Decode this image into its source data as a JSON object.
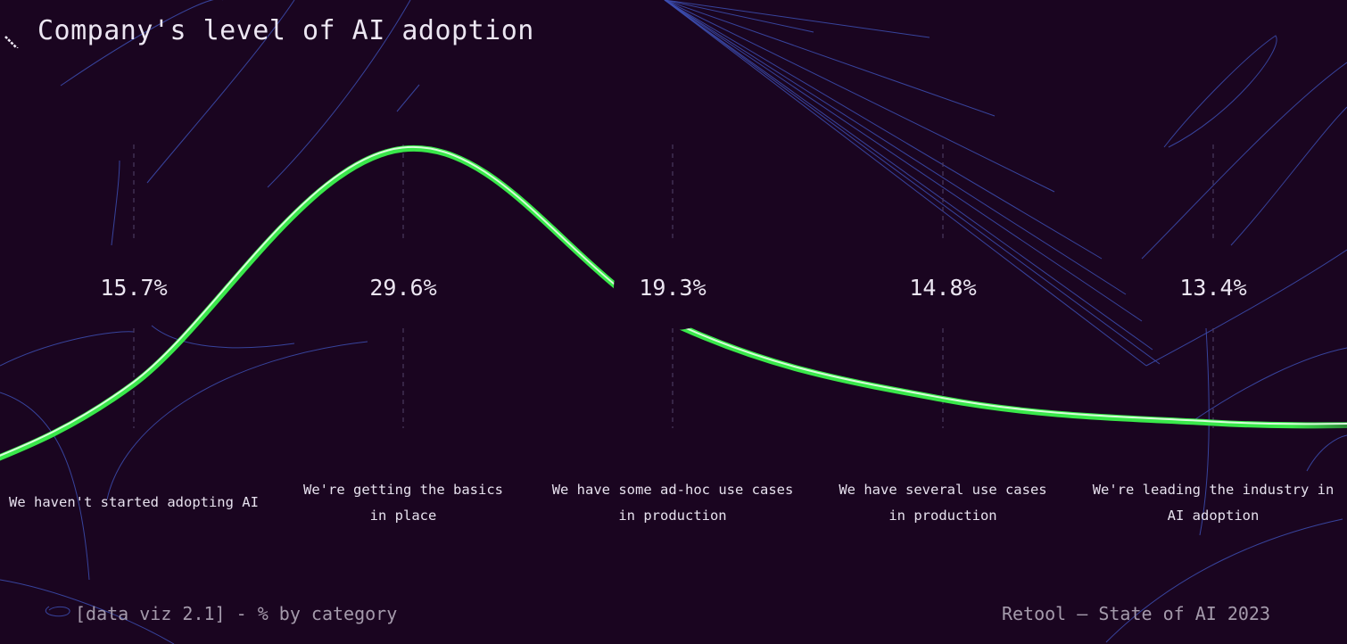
{
  "title": "Company's level of AI adoption",
  "footer": {
    "caption": "[data viz 2.1] - % by category",
    "source": "Retool – State of AI 2023"
  },
  "colors": {
    "background": "#1a0520",
    "curve": "#39e84a",
    "curve_highlight": "#e9ffe9",
    "decor_lines": "#3d4fb3",
    "grid": "#4a3a5e"
  },
  "icons": {
    "title": "diagonal-arrow-icon"
  },
  "chart_data": {
    "type": "line",
    "title": "Company's level of AI adoption",
    "categories": [
      "We haven't started adopting AI",
      "We're getting the basics in place",
      "We have some ad-hoc use cases in production",
      "We have several use cases in production",
      "We're leading the industry in AI adoption"
    ],
    "category_lines": [
      [
        "We haven't started adopting AI"
      ],
      [
        "We're getting the basics",
        "in place"
      ],
      [
        "We have some ad-hoc use cases",
        "in production"
      ],
      [
        "We have several use cases",
        "in production"
      ],
      [
        "We're leading the industry in",
        "AI adoption"
      ]
    ],
    "value_labels": [
      "15.7%",
      "29.6%",
      "19.3%",
      "14.8%",
      "13.4%"
    ],
    "values": [
      15.7,
      29.6,
      19.3,
      14.8,
      13.4
    ],
    "unit": "%",
    "curve_style": "smooth",
    "grid": "dashed vertical lines per category",
    "legend": "none"
  }
}
